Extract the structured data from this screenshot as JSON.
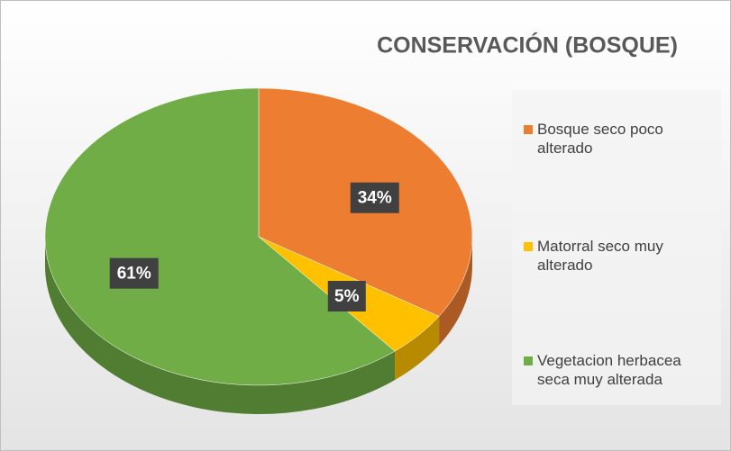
{
  "chart_data": {
    "type": "pie",
    "title": "CONSERVACIÓN (BOSQUE)",
    "categories": [
      "Bosque seco poco alterado",
      "Matorral seco muy alterado",
      "Vegetacion herbacea seca muy alterada"
    ],
    "values": [
      34,
      5,
      61
    ],
    "value_labels": [
      "34%",
      "5%",
      "61%"
    ],
    "colors": [
      "#ED7D31",
      "#FFC000",
      "#70AD47"
    ],
    "legend": "right"
  }
}
